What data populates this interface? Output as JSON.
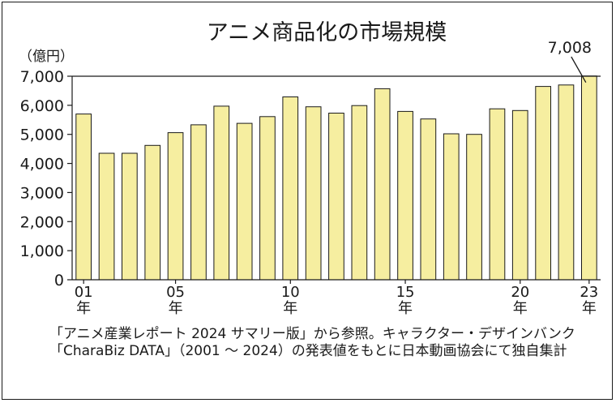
{
  "chart_data": {
    "type": "bar",
    "title": "アニメ商品化の市場規模",
    "ylabel": "（億円）",
    "ylim": [
      0,
      7000
    ],
    "yticks": [
      "0",
      "1,000",
      "2,000",
      "3,000",
      "4,000",
      "5,000",
      "6,000",
      "7,000"
    ],
    "categories": [
      "2001",
      "2002",
      "2003",
      "2004",
      "2005",
      "2006",
      "2007",
      "2008",
      "2009",
      "2010",
      "2011",
      "2012",
      "2013",
      "2014",
      "2015",
      "2016",
      "2017",
      "2018",
      "2019",
      "2020",
      "2021",
      "2022",
      "2023"
    ],
    "values": [
      5700,
      4350,
      4350,
      4620,
      5060,
      5330,
      5970,
      5380,
      5610,
      6290,
      5950,
      5730,
      5990,
      6570,
      5790,
      5530,
      5020,
      5000,
      5880,
      5820,
      6650,
      6700,
      7008
    ],
    "xtick_labels": [
      {
        "index": 0,
        "num": "01",
        "unit": "年"
      },
      {
        "index": 4,
        "num": "05",
        "unit": "年"
      },
      {
        "index": 9,
        "num": "10",
        "unit": "年"
      },
      {
        "index": 14,
        "num": "15",
        "unit": "年"
      },
      {
        "index": 19,
        "num": "20",
        "unit": "年"
      },
      {
        "index": 22,
        "num": "23",
        "unit": "年"
      }
    ],
    "annotation": {
      "index": 22,
      "text": "7,008"
    },
    "bar_color": "#f6eea0",
    "bar_stroke": "#1a1a1a",
    "grid": false
  },
  "note": "「アニメ産業レポート 2024 サマリー版」から参照。キャラクター・デザインバンク「CharaBiz DATA」（2001 ～ 2024）の発表値をもとに日本動画協会にて独自集計"
}
